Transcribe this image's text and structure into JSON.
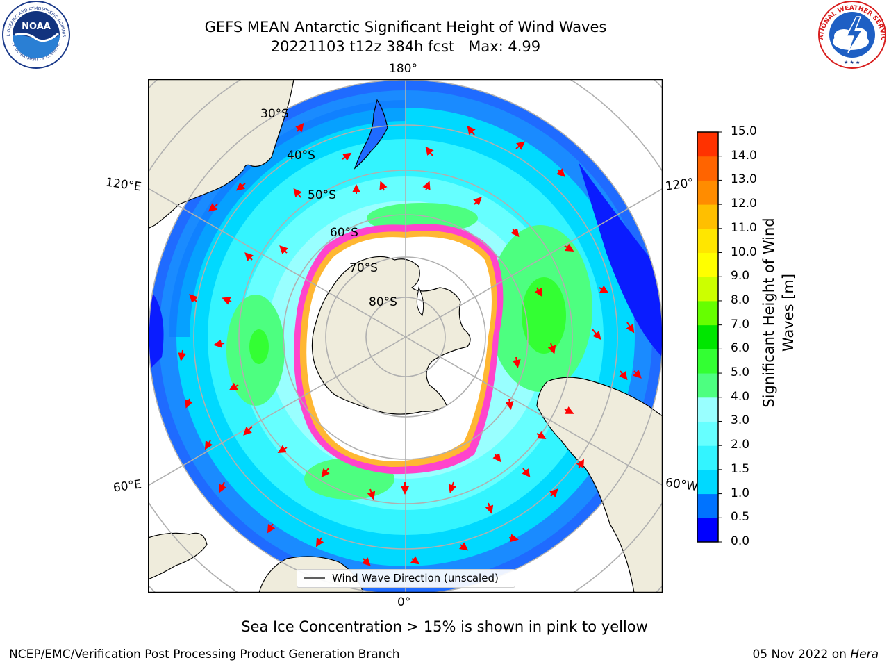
{
  "header": {
    "title_line1": "GEFS MEAN Antarctic Significant Height of Wind Waves",
    "title_line2": "20221103 t12z 384h fcst   Max: 4.99"
  },
  "logos": {
    "noaa_text": "NOAA",
    "noaa_ring_top": "NATIONAL OCEANIC AND ATMOSPHERIC ADMINISTRATION",
    "noaa_ring_bottom": "U.S. DEPARTMENT OF COMMERCE",
    "nws_ring": "NATIONAL WEATHER SERVICE"
  },
  "map": {
    "projection": "south-polar-stereographic",
    "longitude_labels": {
      "top": "180°",
      "bottom": "0°",
      "left_upper": "120°E",
      "left_lower": "60°E",
      "right_upper": "120°",
      "right_lower": "60°W"
    },
    "latitude_labels": [
      "30°S",
      "40°S",
      "50°S",
      "60°S",
      "70°S",
      "80°S"
    ],
    "legend_label": "Wind Wave Direction (unscaled)",
    "colors": {
      "land": "#efecdc",
      "open_ocean_low": "#1f6bff",
      "sea_ice_edge": "#ff44cc",
      "sea_ice_high": "#ffb733",
      "arrow": "#ff0000"
    }
  },
  "colorbar": {
    "label_line1": "Significant Height of Wind",
    "label_line2": "Waves [m]",
    "ticks": [
      "0.0",
      "0.5",
      "1.0",
      "1.5",
      "2.0",
      "3.0",
      "4.0",
      "5.0",
      "6.0",
      "7.0",
      "8.0",
      "9.0",
      "10.0",
      "11.0",
      "12.0",
      "13.0",
      "14.0",
      "15.0"
    ],
    "colors": [
      "#0000ff",
      "#0073ff",
      "#00d9ff",
      "#33f4ff",
      "#66ffff",
      "#99ffff",
      "#4dff80",
      "#33ff33",
      "#00e600",
      "#66ff00",
      "#ccff00",
      "#ffff00",
      "#ffe600",
      "#ffbf00",
      "#ff8c00",
      "#ff6400",
      "#ff3200",
      "#ff0000"
    ]
  },
  "caption": "Sea Ice Concentration > 15% is shown in pink to yellow",
  "footer": {
    "left": "NCEP/EMC/Verification Post Processing Product Generation Branch",
    "right_date": "05 Nov 2022 on ",
    "right_machine": "Hera"
  }
}
